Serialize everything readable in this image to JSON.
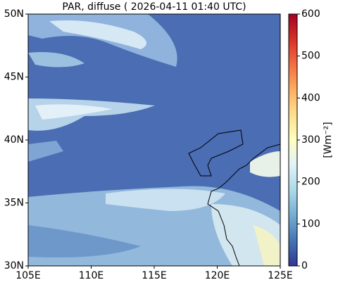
{
  "title": "PAR, diffuse ( 2026-04-11 01:40 UTC)",
  "map": {
    "xlim": [
      105,
      125
    ],
    "ylim": [
      30,
      50
    ],
    "xticks": [
      {
        "value": 105,
        "label": "105E"
      },
      {
        "value": 110,
        "label": "110E"
      },
      {
        "value": 115,
        "label": "115E"
      },
      {
        "value": 120,
        "label": "120E"
      },
      {
        "value": 125,
        "label": "125E"
      }
    ],
    "yticks": [
      {
        "value": 30,
        "label": "30N"
      },
      {
        "value": 35,
        "label": "35N"
      },
      {
        "value": 40,
        "label": "40N"
      },
      {
        "value": 45,
        "label": "45N"
      },
      {
        "value": 50,
        "label": "50N"
      }
    ]
  },
  "colorbar": {
    "label": "[Wm⁻²]",
    "lim": [
      0,
      600
    ],
    "ticks": [
      0,
      100,
      200,
      300,
      400,
      500,
      600
    ]
  }
}
